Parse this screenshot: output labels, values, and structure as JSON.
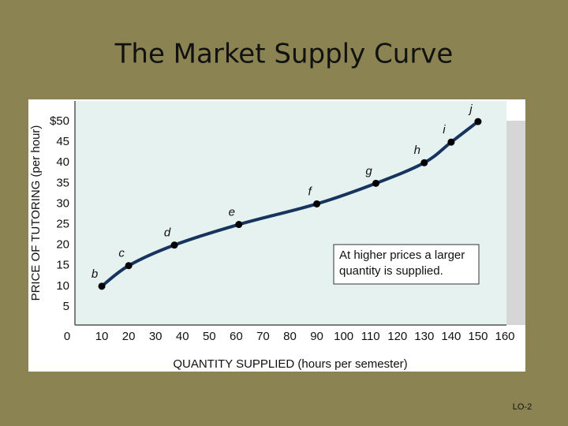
{
  "chart_data": {
    "type": "line",
    "title": "The Market Supply Curve",
    "x_label": "QUANTITY SUPPLIED (hours per semester)",
    "y_label": "PRICE OF TUTORING (per hour)",
    "x": [
      10,
      20,
      37,
      61,
      90,
      112,
      130,
      140,
      150
    ],
    "values": [
      10,
      15,
      20,
      25,
      30,
      35,
      40,
      45,
      50
    ],
    "point_labels": [
      "b",
      "c",
      "d",
      "e",
      "f",
      "g",
      "h",
      "i",
      "j"
    ],
    "color": "#17345f",
    "marker_color": "#000000",
    "xlim": [
      0,
      160
    ],
    "ylim": [
      0,
      55
    ],
    "xticks": [
      0,
      10,
      20,
      30,
      40,
      50,
      60,
      70,
      80,
      90,
      100,
      110,
      120,
      130,
      140,
      150,
      160
    ],
    "yticks": [
      5,
      10,
      15,
      20,
      25,
      30,
      35,
      40,
      45,
      {
        "value": 50,
        "label": "$50"
      }
    ],
    "annotation": [
      "At higher prices a larger",
      "quantity is supplied."
    ],
    "footer": "LO-2"
  }
}
